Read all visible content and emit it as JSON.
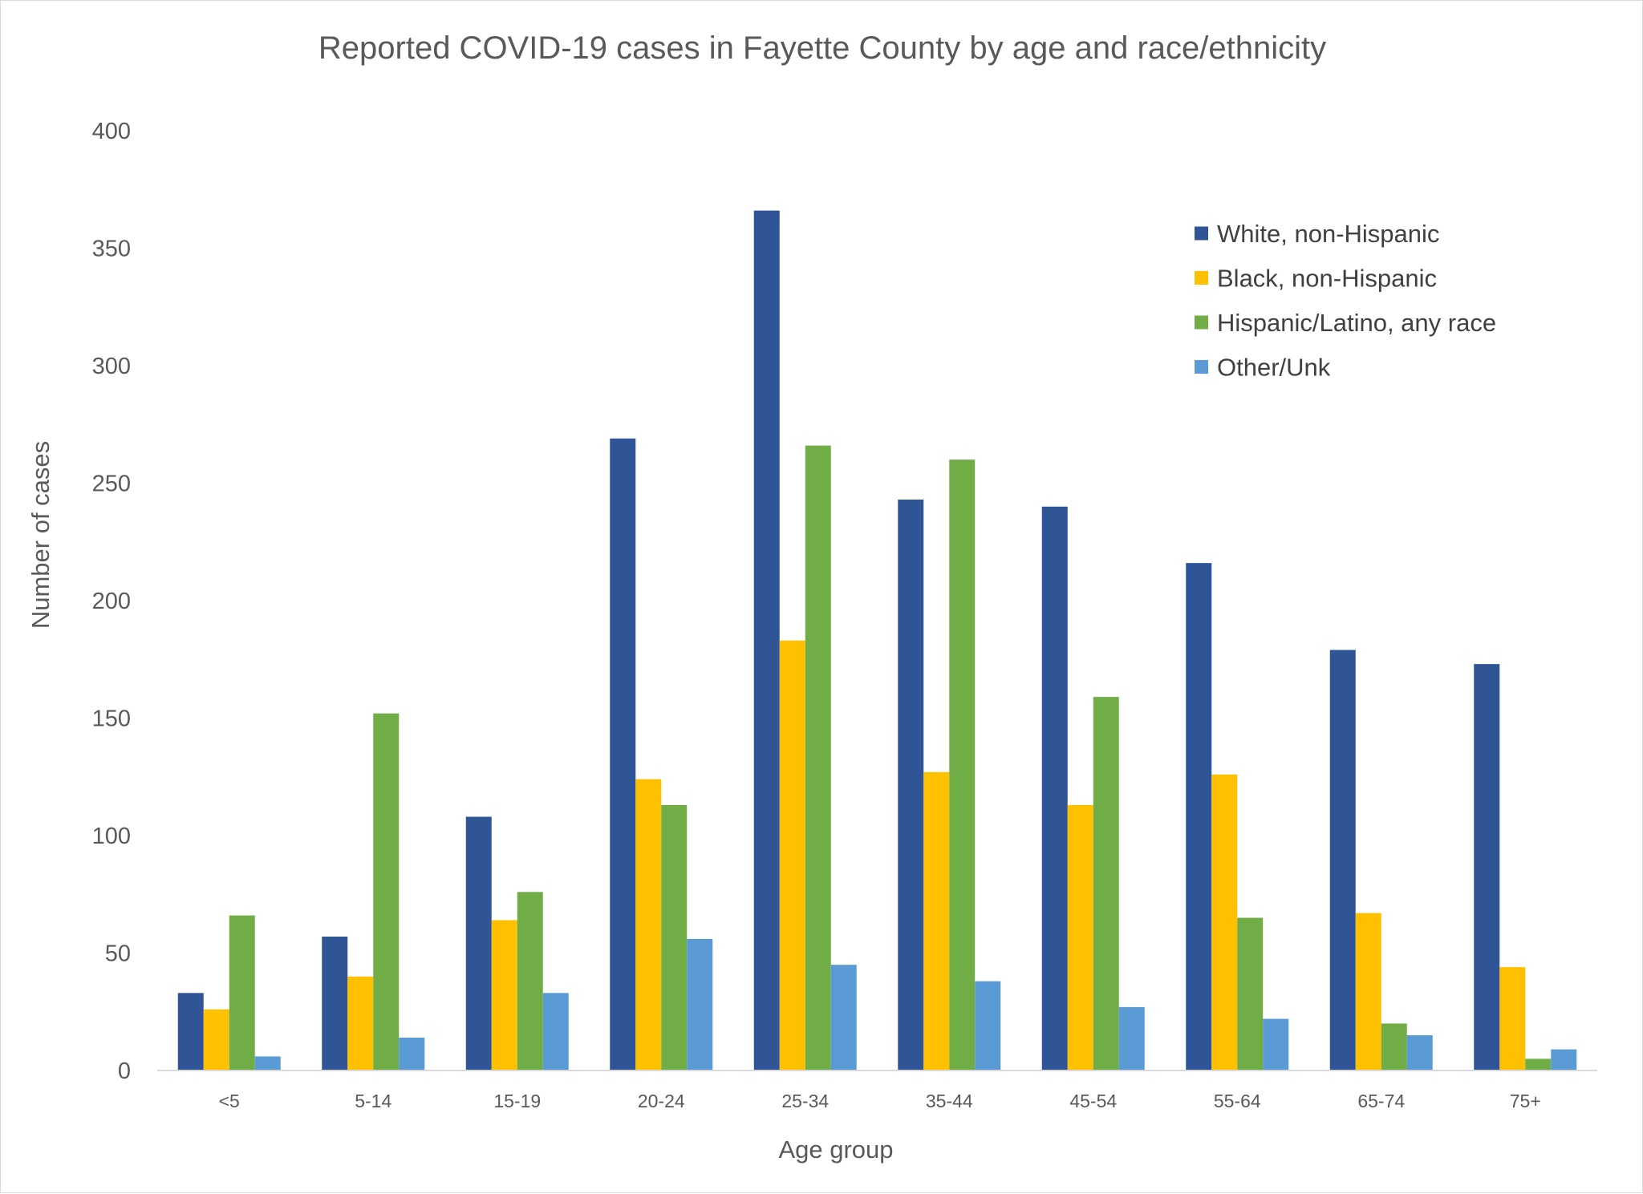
{
  "chart_data": {
    "type": "bar",
    "title": "Reported COVID-19 cases in Fayette County by age and race/ethnicity",
    "xlabel": "Age group",
    "ylabel": "Number of cases",
    "ylim": [
      0,
      400
    ],
    "yticks": [
      0,
      50,
      100,
      150,
      200,
      250,
      300,
      350,
      400
    ],
    "grid": false,
    "legend_position": "top-right",
    "categories": [
      "<5",
      "5-14",
      "15-19",
      "20-24",
      "25-34",
      "35-44",
      "45-54",
      "55-64",
      "65-74",
      "75+"
    ],
    "series": [
      {
        "name": "White, non-Hispanic",
        "color": "#2F5597",
        "values": [
          33,
          57,
          108,
          269,
          366,
          243,
          240,
          216,
          179,
          173
        ]
      },
      {
        "name": "Black, non-Hispanic",
        "color": "#FFC000",
        "values": [
          26,
          40,
          64,
          124,
          183,
          127,
          113,
          126,
          67,
          44
        ]
      },
      {
        "name": "Hispanic/Latino, any race",
        "color": "#70AD47",
        "values": [
          66,
          152,
          76,
          113,
          266,
          260,
          159,
          65,
          20,
          5
        ]
      },
      {
        "name": "Other/Unk",
        "color": "#5B9BD5",
        "values": [
          6,
          14,
          33,
          56,
          45,
          38,
          27,
          22,
          15,
          9
        ]
      }
    ]
  }
}
